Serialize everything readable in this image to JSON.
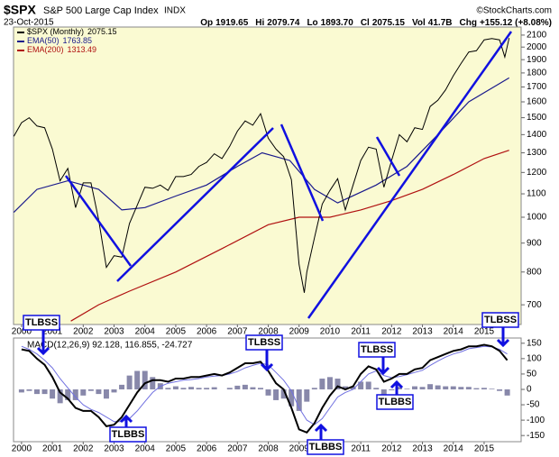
{
  "header": {
    "symbol": "$SPX",
    "name": "S&P 500 Large Cap Index",
    "exchange": "INDX",
    "source": "©StockCharts.com",
    "date": "23-Oct-2015",
    "stats": [
      {
        "label": "Op",
        "value": "1919.65"
      },
      {
        "label": "Hi",
        "value": "2079.74"
      },
      {
        "label": "Lo",
        "value": "1893.70"
      },
      {
        "label": "Cl",
        "value": "2075.15"
      },
      {
        "label": "Vol",
        "value": "41.7B"
      },
      {
        "label": "Chg",
        "value": "+155.12 (+8.08%)"
      }
    ]
  },
  "annotations": [
    "TLBSS",
    "TLBBS",
    "TLBSS",
    "TLBBS",
    "TLBSS",
    "TLBBS",
    "TLBSS"
  ],
  "chart_data": [
    {
      "type": "line",
      "log_scale": true,
      "background": "#fafad2",
      "xlim": [
        1999.74,
        2016.2
      ],
      "xticks": [
        2000,
        2001,
        2002,
        2003,
        2004,
        2005,
        2006,
        2007,
        2008,
        2009,
        2010,
        2011,
        2012,
        2013,
        2014,
        2015
      ],
      "ylim": [
        646,
        2170
      ],
      "yticks": [
        700,
        800,
        900,
        1000,
        1100,
        1200,
        1300,
        1400,
        1500,
        1600,
        1700,
        1800,
        1900,
        2000,
        2100
      ],
      "series": [
        {
          "name": "$SPX (Monthly)",
          "legend_value": 2075.15,
          "color": "#000000",
          "x": [
            1999.75,
            2000,
            2000.25,
            2000.5,
            2000.75,
            2001,
            2001.25,
            2001.5,
            2001.75,
            2002,
            2002.25,
            2002.5,
            2002.75,
            2003,
            2003.25,
            2003.5,
            2003.75,
            2004,
            2004.25,
            2004.5,
            2004.75,
            2005,
            2005.25,
            2005.5,
            2005.75,
            2006,
            2006.25,
            2006.5,
            2006.75,
            2007,
            2007.25,
            2007.5,
            2007.75,
            2008,
            2008.25,
            2008.5,
            2008.75,
            2009,
            2009.17,
            2009.25,
            2009.5,
            2009.75,
            2010,
            2010.25,
            2010.5,
            2010.75,
            2011,
            2011.25,
            2011.5,
            2011.75,
            2012,
            2012.25,
            2012.5,
            2012.75,
            2013,
            2013.25,
            2013.5,
            2013.75,
            2014,
            2014.25,
            2014.5,
            2014.75,
            2015,
            2015.25,
            2015.5,
            2015.67,
            2015.81
          ],
          "values": [
            1390,
            1470,
            1500,
            1450,
            1440,
            1320,
            1160,
            1220,
            1040,
            1150,
            1150,
            990,
            815,
            855,
            850,
            975,
            1050,
            1130,
            1125,
            1140,
            1115,
            1180,
            1180,
            1190,
            1230,
            1250,
            1295,
            1270,
            1335,
            1420,
            1480,
            1455,
            1525,
            1380,
            1320,
            1280,
            1165,
            825,
            735,
            800,
            920,
            1055,
            1115,
            1170,
            1030,
            1140,
            1260,
            1330,
            1320,
            1130,
            1260,
            1400,
            1360,
            1440,
            1430,
            1570,
            1610,
            1680,
            1780,
            1870,
            1960,
            1970,
            2060,
            2070,
            2060,
            1920,
            2075
          ]
        },
        {
          "name": "EMA(50)",
          "legend_value": 1763.85,
          "color": "#1a1a8c",
          "x": [
            1999.75,
            2000.5,
            2001.5,
            2002.5,
            2003.25,
            2004,
            2005,
            2006,
            2007,
            2007.8,
            2008.7,
            2009.5,
            2010.25,
            2011.5,
            2012.5,
            2013.5,
            2014.5,
            2015.81
          ],
          "values": [
            1020,
            1120,
            1160,
            1120,
            1030,
            1040,
            1090,
            1140,
            1230,
            1300,
            1260,
            1120,
            1060,
            1140,
            1230,
            1400,
            1600,
            1763.85
          ]
        },
        {
          "name": "EMA(200)",
          "legend_value": 1313.49,
          "color": "#b01010",
          "x": [
            2001.6,
            2002.5,
            2003.5,
            2005,
            2006.5,
            2008,
            2009,
            2010,
            2011,
            2012,
            2013,
            2014,
            2015,
            2015.81
          ],
          "values": [
            655,
            700,
            740,
            800,
            880,
            970,
            1000,
            1000,
            1030,
            1070,
            1120,
            1190,
            1270,
            1313.49
          ]
        }
      ]
    },
    {
      "type": "macd",
      "title": "MACD(12,26,9) 92.128, 116.855, -24.727",
      "background": "#ffffff",
      "xlim": [
        1999.74,
        2016.2
      ],
      "xticks": [
        2000,
        2001,
        2002,
        2003,
        2004,
        2005,
        2006,
        2007,
        2008,
        2009,
        2010,
        2011,
        2012,
        2013,
        2014,
        2015
      ],
      "ylim": [
        -170,
        167
      ],
      "yticks": [
        150,
        100,
        50,
        0,
        -50,
        -100,
        -150
      ],
      "x": [
        2000,
        2000.25,
        2000.5,
        2000.75,
        2001,
        2001.25,
        2001.5,
        2001.75,
        2002,
        2002.25,
        2002.5,
        2002.75,
        2003,
        2003.25,
        2003.5,
        2003.75,
        2004,
        2004.25,
        2004.5,
        2004.75,
        2005,
        2005.25,
        2005.5,
        2005.75,
        2006,
        2006.25,
        2006.5,
        2006.75,
        2007,
        2007.25,
        2007.5,
        2007.75,
        2008,
        2008.25,
        2008.5,
        2008.75,
        2009,
        2009.25,
        2009.5,
        2009.75,
        2010,
        2010.25,
        2010.5,
        2010.75,
        2011,
        2011.25,
        2011.5,
        2011.75,
        2012,
        2012.25,
        2012.5,
        2012.75,
        2013,
        2013.25,
        2013.5,
        2013.75,
        2014,
        2014.25,
        2014.5,
        2014.75,
        2015,
        2015.25,
        2015.5,
        2015.75
      ],
      "macd": {
        "color": "#000000",
        "values": [
          130,
          125,
          100,
          80,
          40,
          -10,
          -30,
          -60,
          -70,
          -70,
          -90,
          -120,
          -115,
          -90,
          -50,
          -10,
          20,
          30,
          30,
          25,
          35,
          35,
          40,
          40,
          45,
          50,
          45,
          55,
          70,
          85,
          85,
          90,
          60,
          20,
          0,
          -60,
          -130,
          -140,
          -110,
          -60,
          -20,
          10,
          0,
          10,
          50,
          75,
          65,
          25,
          35,
          50,
          50,
          65,
          70,
          95,
          105,
          115,
          125,
          130,
          140,
          140,
          145,
          140,
          125,
          95
        ]
      },
      "signal": {
        "color": "#7070e0",
        "values": [
          140,
          130,
          115,
          95,
          70,
          35,
          5,
          -25,
          -50,
          -65,
          -75,
          -90,
          -105,
          -105,
          -95,
          -70,
          -40,
          -10,
          10,
          20,
          25,
          30,
          32,
          35,
          40,
          43,
          45,
          50,
          58,
          70,
          78,
          85,
          80,
          55,
          30,
          -5,
          -60,
          -100,
          -115,
          -95,
          -60,
          -25,
          -10,
          0,
          25,
          50,
          60,
          45,
          38,
          42,
          48,
          55,
          62,
          78,
          92,
          105,
          115,
          122,
          132,
          136,
          140,
          138,
          130,
          115
        ]
      },
      "histogram": {
        "color": "#8888aa",
        "values": [
          -10,
          -5,
          -15,
          -15,
          -30,
          -45,
          -35,
          -35,
          -20,
          -5,
          -15,
          -30,
          -10,
          15,
          45,
          60,
          60,
          40,
          20,
          5,
          10,
          5,
          8,
          5,
          5,
          7,
          0,
          5,
          12,
          15,
          7,
          5,
          -20,
          -35,
          -30,
          -55,
          -70,
          -40,
          5,
          35,
          40,
          35,
          10,
          10,
          25,
          25,
          5,
          -20,
          -3,
          8,
          2,
          10,
          8,
          17,
          13,
          10,
          10,
          8,
          8,
          4,
          5,
          2,
          -5,
          -20
        ]
      }
    }
  ]
}
